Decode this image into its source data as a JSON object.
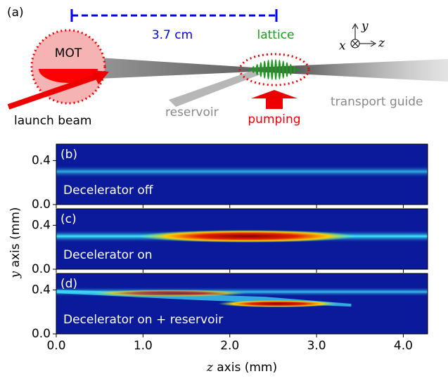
{
  "schematic": {
    "tag": "(a)",
    "distance": "3.7 cm",
    "mot": "MOT",
    "lattice": "lattice",
    "launch": "launch beam",
    "reservoir": "reservoir",
    "pumping": "pumping",
    "guide": "transport guide",
    "axis_x": "x",
    "axis_y": "y",
    "axis_z": "z"
  },
  "images": {
    "panels": [
      {
        "tag": "(b)",
        "caption": "Decelerator off"
      },
      {
        "tag": "(c)",
        "caption": "Decelerator on"
      },
      {
        "tag": "(d)",
        "caption": "Decelerator on + reservoir"
      }
    ],
    "xlabel_var": "z",
    "xlabel": " axis (mm)",
    "ylabel_var": "y",
    "ylabel": " axis (mm)",
    "xlim": [
      0,
      4.28
    ],
    "xticks": [
      {
        "value": 0,
        "label": "0.0"
      },
      {
        "value": 1,
        "label": "1.0"
      },
      {
        "value": 2,
        "label": "2.0"
      },
      {
        "value": 3,
        "label": "3.0"
      },
      {
        "value": 4,
        "label": "4.0"
      }
    ],
    "ylim": [
      0,
      0.55
    ],
    "yticks": [
      {
        "value": 0,
        "label": "0.0"
      },
      {
        "value": 0.4,
        "label": "0.4"
      }
    ]
  }
}
